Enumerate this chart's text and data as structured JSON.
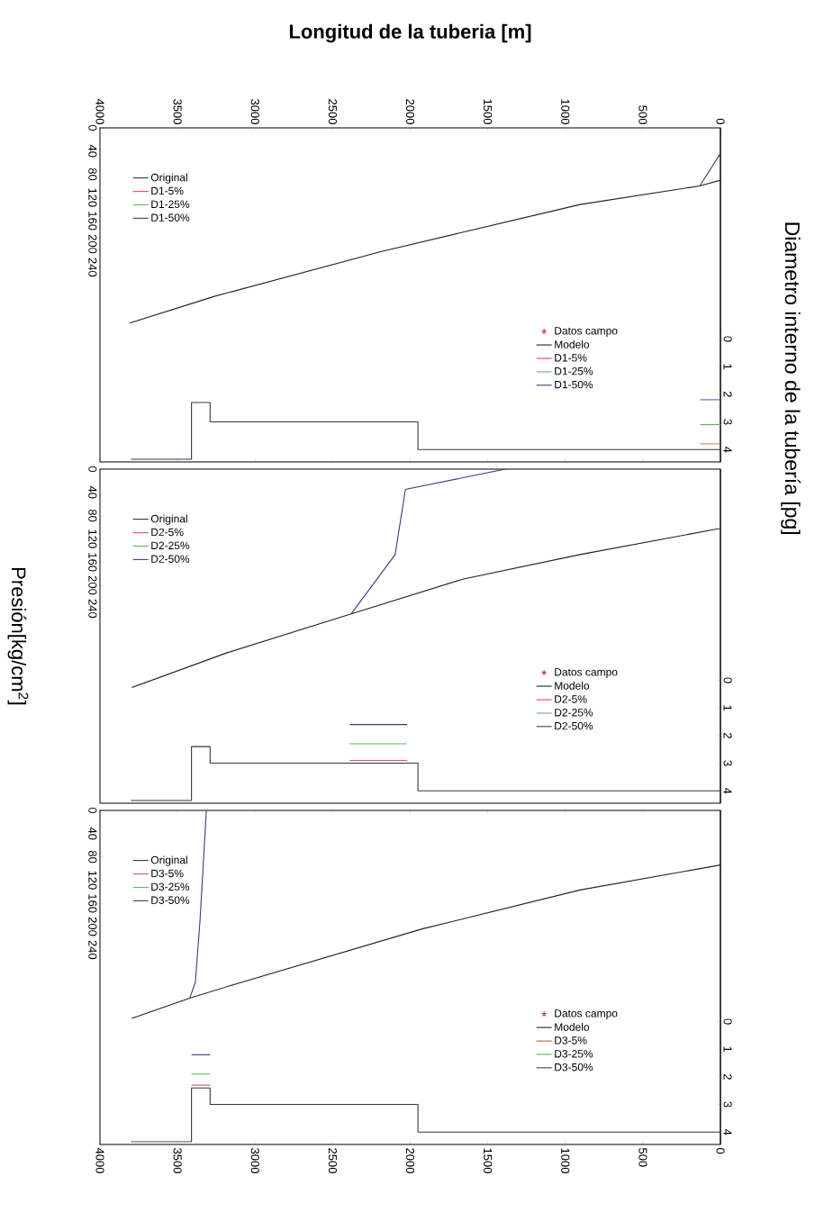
{
  "chart_data": [
    {
      "type": "line",
      "xlabel": "Longitud de la tuberia [m]",
      "y2label": "Diametro interno de la tubería [pg]",
      "xlim": [
        4000,
        0
      ],
      "xticks": [
        0,
        500,
        1000,
        1500,
        2000,
        2500,
        3000,
        3500,
        4000
      ],
      "ylim": [
        575,
        0
      ],
      "yticks": [
        0,
        40,
        80,
        120,
        160,
        200,
        240
      ],
      "y2lim": [
        4.45,
        -7.65
      ],
      "y2ticks": [
        0,
        1,
        2,
        3,
        4
      ],
      "legend": "top left",
      "marker": "none",
      "series": [
        {
          "name": "Datos campo",
          "type": "scatter",
          "marker": "star",
          "color": "#c0406a",
          "values": [
            null
          ]
        },
        {
          "name": "Modelo",
          "color": "#222222",
          "x": [
            0,
            133,
            905,
            2190,
            3262,
            3808
          ],
          "values": [
            90,
            100,
            132,
            213,
            290,
            336
          ]
        },
        {
          "name": "D1-5%",
          "color": "#d9534f",
          "values": [
            null
          ]
        },
        {
          "name": "D1-25%",
          "color": "#5cb85c",
          "values": [
            null
          ]
        },
        {
          "name": "D1-50%",
          "color": "#3a3a80",
          "x": [
            0,
            133
          ],
          "values": [
            44,
            100
          ]
        },
        {
          "name": "Original",
          "type": "step",
          "axis": "y2",
          "color": "#333355",
          "x": [
            0,
            130,
            1950,
            3290,
            3410,
            3800
          ],
          "values": [
            4,
            4,
            3,
            2.3,
            4.35,
            4.35
          ]
        },
        {
          "name": "D1-5%",
          "type": "step",
          "axis": "y2",
          "color": "#d9534f",
          "x": [
            0,
            130
          ],
          "values": [
            3.8,
            3.8
          ]
        },
        {
          "name": "D1-25%",
          "type": "step",
          "axis": "y2",
          "color": "#5cb85c",
          "x": [
            0,
            130
          ],
          "values": [
            3.1,
            3.1
          ]
        },
        {
          "name": "D1-50%",
          "type": "step",
          "axis": "y2",
          "color": "#3a3a80",
          "x": [
            0,
            130
          ],
          "values": [
            2.2,
            2.2
          ]
        }
      ]
    },
    {
      "type": "line",
      "ylabel": "Presión[kg/cm$^{2}$]",
      "xlim": [
        4000,
        0
      ],
      "ylim": [
        575,
        0
      ],
      "yticks": [
        0,
        40,
        80,
        120,
        160,
        200,
        240
      ],
      "y2lim": [
        4.45,
        -7.65
      ],
      "y2ticks": [
        0,
        1,
        2,
        3,
        4
      ],
      "legend": "top left",
      "marker": "none",
      "series": [
        {
          "name": "Datos campo",
          "type": "scatter",
          "marker": "star",
          "color": "#c0406a",
          "values": [
            null
          ]
        },
        {
          "name": "Modelo",
          "color": "#222222",
          "x": [
            0,
            905,
            1656,
            2380,
            3180,
            3795
          ],
          "values": [
            102,
            147,
            189,
            249,
            316,
            376
          ]
        },
        {
          "name": "D2-5%",
          "color": "#d9534f",
          "values": [
            null
          ]
        },
        {
          "name": "D2-25%",
          "color": "#5cb85c",
          "values": [
            null
          ]
        },
        {
          "name": "D2-50%",
          "color": "#3a3a80",
          "x": [
            1388,
            2031,
            2097,
            2380
          ],
          "values": [
            0,
            35,
            147,
            249
          ]
        },
        {
          "name": "Original",
          "type": "step",
          "axis": "y2",
          "color": "#333355",
          "x": [
            0,
            1950,
            3290,
            3410,
            3800
          ],
          "values": [
            4,
            3,
            2.4,
            4.35,
            4.35
          ]
        },
        {
          "name": "D2-5%",
          "type": "step",
          "axis": "y2",
          "color": "#d9534f",
          "x": [
            2020,
            2390
          ],
          "values": [
            2.9,
            2.9
          ]
        },
        {
          "name": "D2-25%",
          "type": "step",
          "axis": "y2",
          "color": "#5cb85c",
          "x": [
            2020,
            2390
          ],
          "values": [
            2.3,
            2.3
          ]
        },
        {
          "name": "D2-50%",
          "type": "step",
          "axis": "y2",
          "color": "#3a3a80",
          "x": [
            2020,
            2390
          ],
          "values": [
            1.6,
            1.6
          ]
        }
      ]
    },
    {
      "type": "line",
      "xlim": [
        4000,
        0
      ],
      "xticks": [
        0,
        500,
        1000,
        1500,
        2000,
        2500,
        3000,
        3500,
        4000
      ],
      "ylim": [
        575,
        0
      ],
      "yticks": [
        0,
        40,
        80,
        120,
        160,
        200,
        240
      ],
      "y2lim": [
        4.45,
        -7.65
      ],
      "y2ticks": [
        0,
        1,
        2,
        3,
        4
      ],
      "legend": "top left",
      "marker": "none",
      "series": [
        {
          "name": "Datos campo",
          "type": "scatter",
          "marker": "star",
          "color": "#c0406a",
          "values": [
            null
          ]
        },
        {
          "name": "Modelo",
          "color": "#222222",
          "x": [
            0,
            905,
            1923,
            3128,
            3421,
            3795
          ],
          "values": [
            94,
            137,
            204,
            299,
            323,
            358
          ]
        },
        {
          "name": "D3-5%",
          "color": "#d9534f",
          "values": [
            null
          ]
        },
        {
          "name": "D3-25%",
          "color": "#5cb85c",
          "values": [
            null
          ]
        },
        {
          "name": "D3-50%",
          "color": "#3a3a80",
          "x": [
            3314,
            3355,
            3385,
            3421
          ],
          "values": [
            0,
            190,
            296,
            323
          ]
        },
        {
          "name": "Original",
          "type": "step",
          "axis": "y2",
          "color": "#333355",
          "x": [
            0,
            1950,
            3290,
            3410,
            3800
          ],
          "values": [
            4,
            3,
            2.4,
            4.35,
            4.35
          ]
        },
        {
          "name": "D3-5%",
          "type": "step",
          "axis": "y2",
          "color": "#d9534f",
          "x": [
            3290,
            3410
          ],
          "values": [
            2.3,
            2.3
          ]
        },
        {
          "name": "D3-25%",
          "type": "step",
          "axis": "y2",
          "color": "#5cb85c",
          "x": [
            3290,
            3410
          ],
          "values": [
            1.9,
            1.9
          ]
        },
        {
          "name": "D3-50%",
          "type": "step",
          "axis": "y2",
          "color": "#3a3a80",
          "x": [
            3290,
            3410
          ],
          "values": [
            1.2,
            1.2
          ]
        }
      ]
    }
  ]
}
